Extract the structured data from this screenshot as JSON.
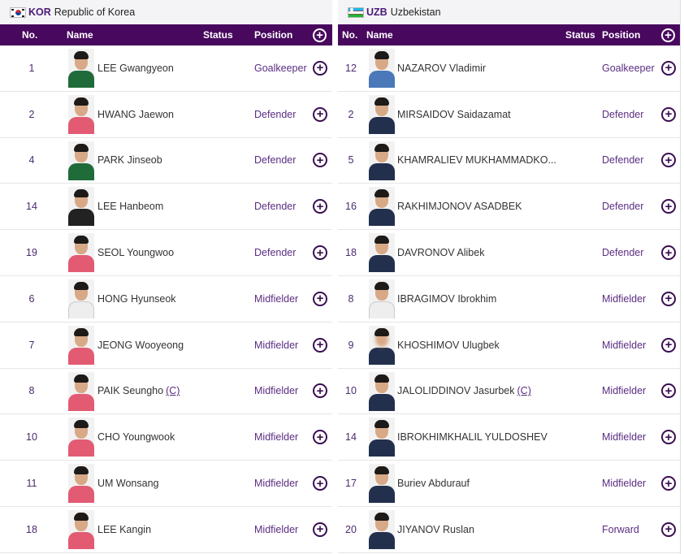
{
  "teams": [
    {
      "code": "KOR",
      "name": "Republic of Korea",
      "flag_icon": "south-korea-flag-icon",
      "headers": {
        "no": "No.",
        "name": "Name",
        "status": "Status",
        "position": "Position"
      },
      "players": [
        {
          "no": "1",
          "name": "LEE Gwangyeon",
          "captain": "",
          "position": "Goalkeeper",
          "kit": "green"
        },
        {
          "no": "2",
          "name": "HWANG Jaewon",
          "captain": "",
          "position": "Defender",
          "kit": "red"
        },
        {
          "no": "4",
          "name": "PARK Jinseob",
          "captain": "",
          "position": "Defender",
          "kit": "green"
        },
        {
          "no": "14",
          "name": "LEE Hanbeom",
          "captain": "",
          "position": "Defender",
          "kit": "black"
        },
        {
          "no": "19",
          "name": "SEOL Youngwoo",
          "captain": "",
          "position": "Defender",
          "kit": "red"
        },
        {
          "no": "6",
          "name": "HONG Hyunseok",
          "captain": "",
          "position": "Midfielder",
          "kit": "white"
        },
        {
          "no": "7",
          "name": "JEONG Wooyeong",
          "captain": "",
          "position": "Midfielder",
          "kit": "red"
        },
        {
          "no": "8",
          "name": "PAIK Seungho",
          "captain": "(C)",
          "position": "Midfielder",
          "kit": "red"
        },
        {
          "no": "10",
          "name": "CHO Youngwook",
          "captain": "",
          "position": "Midfielder",
          "kit": "red"
        },
        {
          "no": "11",
          "name": "UM Wonsang",
          "captain": "",
          "position": "Midfielder",
          "kit": "red"
        },
        {
          "no": "18",
          "name": "LEE Kangin",
          "captain": "",
          "position": "Midfielder",
          "kit": "red"
        }
      ]
    },
    {
      "code": "UZB",
      "name": "Uzbekistan",
      "flag_icon": "uzbekistan-flag-icon",
      "headers": {
        "no": "No.",
        "name": "Name",
        "status": "Status",
        "position": "Position"
      },
      "players": [
        {
          "no": "12",
          "name": "NAZAROV Vladimir",
          "captain": "",
          "position": "Goalkeeper",
          "kit": "blue"
        },
        {
          "no": "2",
          "name": "MIRSAIDOV Saidazamat",
          "captain": "",
          "position": "Defender",
          "kit": "navy"
        },
        {
          "no": "5",
          "name": "KHAMRALIEV MUKHAMMADKO...",
          "captain": "",
          "position": "Defender",
          "kit": "navy"
        },
        {
          "no": "16",
          "name": "RAKHIMJONOV ASADBEK",
          "captain": "",
          "position": "Defender",
          "kit": "navy"
        },
        {
          "no": "18",
          "name": "DAVRONOV Alibek",
          "captain": "",
          "position": "Defender",
          "kit": "navy"
        },
        {
          "no": "8",
          "name": "IBRAGIMOV Ibrokhim",
          "captain": "",
          "position": "Midfielder",
          "kit": "white"
        },
        {
          "no": "9",
          "name": "KHOSHIMOV Ulugbek",
          "captain": "",
          "position": "Midfielder",
          "kit": "navy"
        },
        {
          "no": "10",
          "name": "JALOLIDDINOV Jasurbek",
          "captain": "(C)",
          "position": "Midfielder",
          "kit": "navy"
        },
        {
          "no": "14",
          "name": "IBROKHIMKHALIL YULDOSHEV",
          "captain": "",
          "position": "Midfielder",
          "kit": "navy"
        },
        {
          "no": "17",
          "name": "Buriev Abdurauf",
          "captain": "",
          "position": "Midfielder",
          "kit": "navy"
        },
        {
          "no": "20",
          "name": "JIYANOV Ruslan",
          "captain": "",
          "position": "Forward",
          "kit": "navy"
        }
      ]
    }
  ],
  "icons": {
    "add": "plus-circle-icon",
    "photo": "player-photo"
  },
  "colors": {
    "header_bg": "#48085e",
    "accent": "#5a2d82",
    "title_bg": "#f4f4f6"
  }
}
